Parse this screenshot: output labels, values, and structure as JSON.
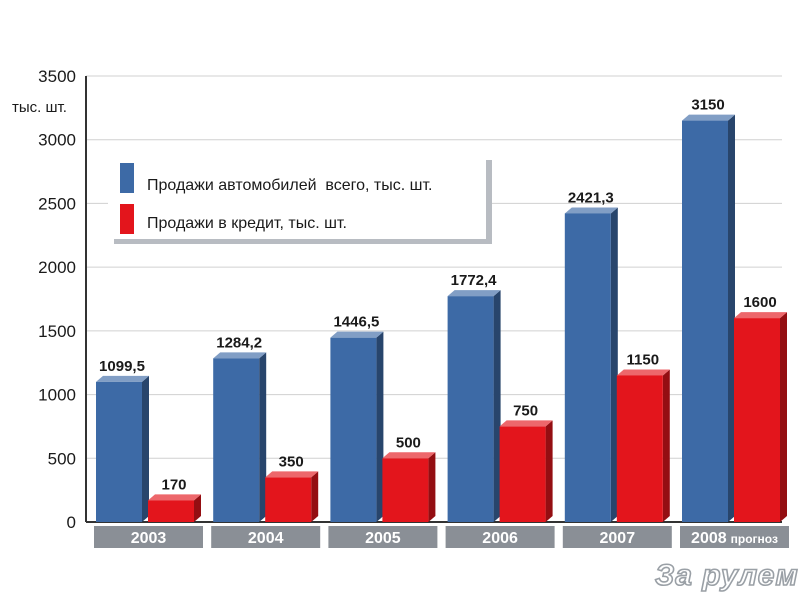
{
  "chart_data": {
    "type": "bar",
    "y_unit": "тыс. шт.",
    "categories": [
      "2003",
      "2004",
      "2005",
      "2006",
      "2007",
      "2008"
    ],
    "category_notes": [
      "",
      "",
      "",
      "",
      "",
      "прогноз"
    ],
    "series": [
      {
        "name": "Продажи автомобилей  всего, тыс. шт.",
        "color": "#3d6aa6",
        "values": [
          1099.5,
          1284.2,
          1446.5,
          1772.4,
          2421.3,
          3150
        ],
        "labels": [
          "1099,5",
          "1284,2",
          "1446,5",
          "1772,4",
          "2421,3",
          "3150"
        ]
      },
      {
        "name": "Продажи в кредит, тыс. шт.",
        "color": "#e3151c",
        "values": [
          170,
          350,
          500,
          750,
          1150,
          1600
        ],
        "labels": [
          "170",
          "350",
          "500",
          "750",
          "1150",
          "1600"
        ]
      }
    ],
    "ylim": [
      0,
      3500
    ],
    "yticks": [
      0,
      500,
      1000,
      1500,
      2000,
      2500,
      3000,
      3500
    ],
    "grid": true,
    "legend": "top-left",
    "category_band_color": "#8a8f96"
  },
  "watermark": "За рулем"
}
